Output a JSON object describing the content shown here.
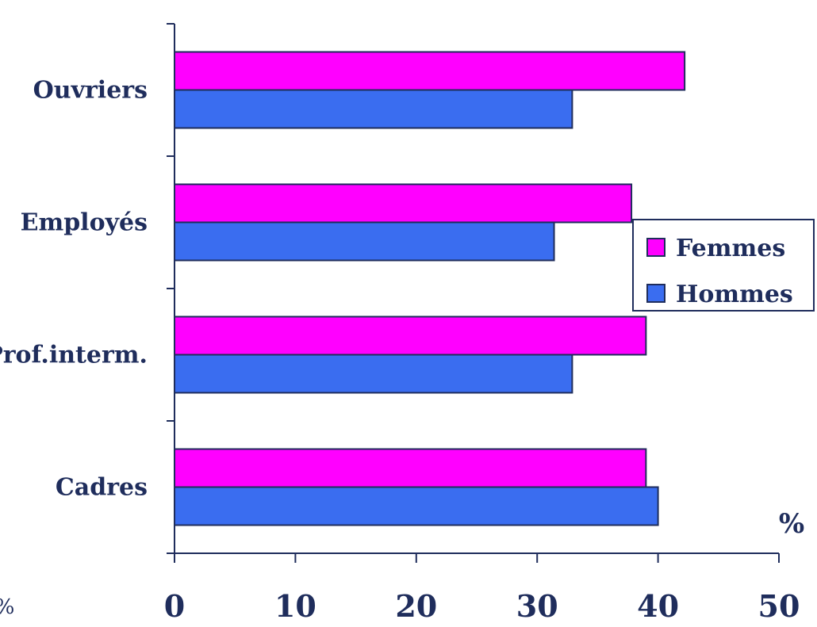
{
  "chart_data": {
    "type": "bar",
    "orientation": "horizontal",
    "categories": [
      "Ouvriers",
      "Employés",
      "Prof.interm.",
      "Cadres"
    ],
    "series": [
      {
        "name": "Femmes",
        "color": "#ff00ff",
        "values": [
          42.2,
          37.8,
          39.0,
          39.0
        ]
      },
      {
        "name": "Hommes",
        "color": "#3a6df0",
        "values": [
          32.9,
          31.4,
          32.9,
          40.0
        ]
      }
    ],
    "xlim": [
      0,
      50
    ],
    "xticks": [
      "0",
      "10",
      "20",
      "30",
      "40",
      "50"
    ],
    "unit_right": "%",
    "unit_left": "%",
    "legend_position": "right",
    "grid": false,
    "axis_color": "#1f2d5c",
    "text_color": "#1f2d5c",
    "bar_outline_color": "#1f2d5c"
  }
}
